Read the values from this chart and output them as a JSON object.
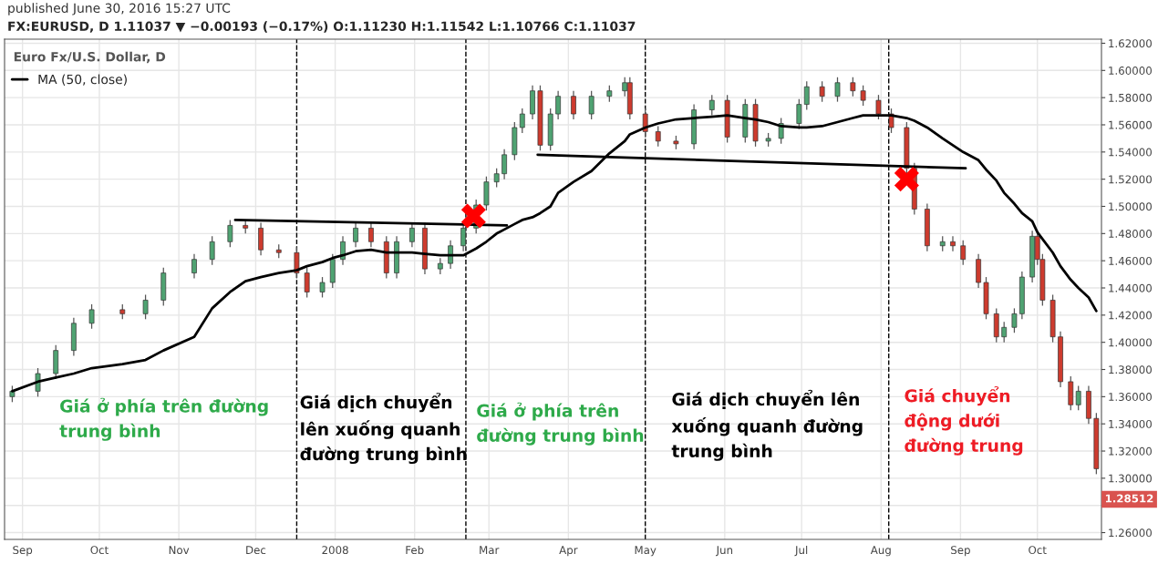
{
  "chart_data": {
    "type": "candlestick",
    "title": "FX:EURUSD, D 1.11037 ▼ −0.00193 (−0.17%) O:1.11230 H:1.11542 L:1.10766 C:1.11037",
    "subtitle": "Euro Fx/U.S. Dollar, D",
    "x": [
      "2007-08-28",
      "2007-09-07",
      "2007-09-14",
      "2007-09-21",
      "2007-09-28",
      "2007-10-10",
      "2007-10-19",
      "2007-10-26",
      "2007-11-07",
      "2007-11-14",
      "2007-11-21",
      "2007-11-27",
      "2007-12-03",
      "2007-12-10",
      "2007-12-17",
      "2007-12-21",
      "2007-12-27",
      "2007-12-31",
      "2008-01-04",
      "2008-01-09",
      "2008-01-15",
      "2008-01-21",
      "2008-01-25",
      "2008-01-31",
      "2008-02-05",
      "2008-02-11",
      "2008-02-15",
      "2008-02-20",
      "2008-02-25",
      "2008-02-29",
      "2008-03-04",
      "2008-03-07",
      "2008-03-11",
      "2008-03-14",
      "2008-03-18",
      "2008-03-21",
      "2008-03-25",
      "2008-03-28",
      "2008-04-03",
      "2008-04-10",
      "2008-04-17",
      "2008-04-23",
      "2008-04-25",
      "2008-05-01",
      "2008-05-06",
      "2008-05-13",
      "2008-05-20",
      "2008-05-27",
      "2008-06-02",
      "2008-06-09",
      "2008-06-13",
      "2008-06-18",
      "2008-06-23",
      "2008-06-30",
      "2008-07-03",
      "2008-07-09",
      "2008-07-15",
      "2008-07-21",
      "2008-07-25",
      "2008-07-31",
      "2008-08-05",
      "2008-08-11",
      "2008-08-14",
      "2008-08-19",
      "2008-08-25",
      "2008-08-29",
      "2008-09-02",
      "2008-09-08",
      "2008-09-11",
      "2008-09-15",
      "2008-09-18",
      "2008-09-22",
      "2008-09-25",
      "2008-09-29",
      "2008-10-01",
      "2008-10-03",
      "2008-10-07",
      "2008-10-10",
      "2008-10-14",
      "2008-10-17",
      "2008-10-21",
      "2008-10-24"
    ],
    "ohlc": [
      [
        1.36,
        1.368,
        1.356,
        1.364
      ],
      [
        1.364,
        1.381,
        1.36,
        1.377
      ],
      [
        1.377,
        1.398,
        1.373,
        1.394
      ],
      [
        1.394,
        1.418,
        1.39,
        1.414
      ],
      [
        1.414,
        1.428,
        1.41,
        1.424
      ],
      [
        1.424,
        1.428,
        1.417,
        1.421
      ],
      [
        1.421,
        1.435,
        1.417,
        1.431
      ],
      [
        1.431,
        1.455,
        1.427,
        1.451
      ],
      [
        1.451,
        1.465,
        1.447,
        1.461
      ],
      [
        1.461,
        1.478,
        1.457,
        1.474
      ],
      [
        1.474,
        1.49,
        1.47,
        1.486
      ],
      [
        1.486,
        1.49,
        1.48,
        1.484
      ],
      [
        1.484,
        1.488,
        1.464,
        1.468
      ],
      [
        1.468,
        1.472,
        1.462,
        1.466
      ],
      [
        1.466,
        1.47,
        1.447,
        1.451
      ],
      [
        1.451,
        1.455,
        1.433,
        1.437
      ],
      [
        1.437,
        1.448,
        1.433,
        1.444
      ],
      [
        1.444,
        1.465,
        1.44,
        1.461
      ],
      [
        1.461,
        1.478,
        1.457,
        1.474
      ],
      [
        1.474,
        1.488,
        1.47,
        1.484
      ],
      [
        1.484,
        1.488,
        1.47,
        1.474
      ],
      [
        1.474,
        1.478,
        1.447,
        1.451
      ],
      [
        1.451,
        1.478,
        1.447,
        1.474
      ],
      [
        1.474,
        1.488,
        1.47,
        1.484
      ],
      [
        1.484,
        1.488,
        1.45,
        1.454
      ],
      [
        1.454,
        1.462,
        1.45,
        1.458
      ],
      [
        1.458,
        1.475,
        1.454,
        1.471
      ],
      [
        1.471,
        1.488,
        1.467,
        1.484
      ],
      [
        1.484,
        1.505,
        1.48,
        1.501
      ],
      [
        1.501,
        1.522,
        1.497,
        1.518
      ],
      [
        1.518,
        1.528,
        1.514,
        1.524
      ],
      [
        1.524,
        1.542,
        1.52,
        1.538
      ],
      [
        1.538,
        1.562,
        1.534,
        1.558
      ],
      [
        1.558,
        1.572,
        1.554,
        1.568
      ],
      [
        1.568,
        1.589,
        1.564,
        1.585
      ],
      [
        1.585,
        1.589,
        1.541,
        1.545
      ],
      [
        1.545,
        1.572,
        1.541,
        1.568
      ],
      [
        1.568,
        1.585,
        1.564,
        1.581
      ],
      [
        1.581,
        1.585,
        1.564,
        1.568
      ],
      [
        1.568,
        1.585,
        1.564,
        1.581
      ],
      [
        1.581,
        1.589,
        1.577,
        1.585
      ],
      [
        1.585,
        1.595,
        1.581,
        1.591
      ],
      [
        1.591,
        1.595,
        1.564,
        1.568
      ],
      [
        1.568,
        1.572,
        1.551,
        1.555
      ],
      [
        1.555,
        1.559,
        1.544,
        1.548
      ],
      [
        1.548,
        1.552,
        1.542,
        1.546
      ],
      [
        1.546,
        1.575,
        1.542,
        1.571
      ],
      [
        1.571,
        1.582,
        1.567,
        1.578
      ],
      [
        1.578,
        1.582,
        1.547,
        1.551
      ],
      [
        1.551,
        1.579,
        1.547,
        1.575
      ],
      [
        1.575,
        1.579,
        1.544,
        1.548
      ],
      [
        1.548,
        1.554,
        1.544,
        1.55
      ],
      [
        1.55,
        1.565,
        1.546,
        1.561
      ],
      [
        1.561,
        1.579,
        1.557,
        1.575
      ],
      [
        1.575,
        1.592,
        1.571,
        1.588
      ],
      [
        1.588,
        1.592,
        1.577,
        1.581
      ],
      [
        1.581,
        1.595,
        1.577,
        1.591
      ],
      [
        1.591,
        1.595,
        1.581,
        1.585
      ],
      [
        1.585,
        1.589,
        1.574,
        1.578
      ],
      [
        1.578,
        1.582,
        1.564,
        1.568
      ],
      [
        1.568,
        1.572,
        1.554,
        1.558
      ],
      [
        1.558,
        1.562,
        1.524,
        1.528
      ],
      [
        1.528,
        1.532,
        1.494,
        1.498
      ],
      [
        1.498,
        1.502,
        1.467,
        1.471
      ],
      [
        1.471,
        1.478,
        1.467,
        1.474
      ],
      [
        1.474,
        1.478,
        1.467,
        1.471
      ],
      [
        1.471,
        1.475,
        1.457,
        1.461
      ],
      [
        1.461,
        1.465,
        1.44,
        1.444
      ],
      [
        1.444,
        1.448,
        1.417,
        1.421
      ],
      [
        1.421,
        1.425,
        1.4,
        1.404
      ],
      [
        1.404,
        1.415,
        1.4,
        1.411
      ],
      [
        1.411,
        1.425,
        1.407,
        1.421
      ],
      [
        1.421,
        1.452,
        1.417,
        1.448
      ],
      [
        1.448,
        1.482,
        1.444,
        1.478
      ],
      [
        1.478,
        1.482,
        1.457,
        1.461
      ],
      [
        1.461,
        1.465,
        1.427,
        1.431
      ],
      [
        1.431,
        1.435,
        1.4,
        1.404
      ],
      [
        1.404,
        1.408,
        1.367,
        1.371
      ],
      [
        1.371,
        1.375,
        1.35,
        1.354
      ],
      [
        1.354,
        1.368,
        1.35,
        1.364
      ],
      [
        1.364,
        1.368,
        1.34,
        1.344
      ],
      [
        1.344,
        1.348,
        1.303,
        1.307
      ]
    ],
    "colors": [
      "#4fa372",
      "#4fa372",
      "#4fa372",
      "#4fa372",
      "#4fa372",
      "#cd3b2e",
      "#4fa372",
      "#4fa372",
      "#4fa372",
      "#4fa372",
      "#4fa372",
      "#cd3b2e",
      "#cd3b2e",
      "#cd3b2e",
      "#cd3b2e",
      "#cd3b2e",
      "#4fa372",
      "#4fa372",
      "#4fa372",
      "#4fa372",
      "#cd3b2e",
      "#cd3b2e",
      "#4fa372",
      "#4fa372",
      "#cd3b2e",
      "#4fa372",
      "#4fa372",
      "#4fa372",
      "#4fa372",
      "#4fa372",
      "#4fa372",
      "#4fa372",
      "#4fa372",
      "#4fa372",
      "#4fa372",
      "#cd3b2e",
      "#4fa372",
      "#4fa372",
      "#cd3b2e",
      "#4fa372",
      "#4fa372",
      "#4fa372",
      "#cd3b2e",
      "#cd3b2e",
      "#cd3b2e",
      "#cd3b2e",
      "#4fa372",
      "#4fa372",
      "#cd3b2e",
      "#4fa372",
      "#cd3b2e",
      "#4fa372",
      "#4fa372",
      "#4fa372",
      "#4fa372",
      "#cd3b2e",
      "#4fa372",
      "#cd3b2e",
      "#cd3b2e",
      "#cd3b2e",
      "#cd3b2e",
      "#cd3b2e",
      "#cd3b2e",
      "#cd3b2e",
      "#4fa372",
      "#cd3b2e",
      "#cd3b2e",
      "#cd3b2e",
      "#cd3b2e",
      "#cd3b2e",
      "#4fa372",
      "#4fa372",
      "#4fa372",
      "#4fa372",
      "#cd3b2e",
      "#cd3b2e",
      "#cd3b2e",
      "#cd3b2e",
      "#cd3b2e",
      "#4fa372",
      "#cd3b2e",
      "#cd3b2e"
    ],
    "series": [
      {
        "type": "line",
        "name": "MA (50, close)",
        "color": "#000000",
        "values": [
          1.364,
          1.371,
          1.374,
          1.377,
          1.381,
          1.384,
          1.387,
          1.394,
          1.404,
          1.425,
          1.437,
          1.445,
          1.448,
          1.451,
          1.453,
          1.456,
          1.459,
          1.462,
          1.464,
          1.467,
          1.468,
          1.466,
          1.466,
          1.466,
          1.465,
          1.464,
          1.464,
          1.464,
          1.469,
          1.474,
          1.48,
          1.483,
          1.487,
          1.49,
          1.492,
          1.495,
          1.5,
          1.51,
          1.518,
          1.526,
          1.539,
          1.548,
          1.553,
          1.558,
          1.561,
          1.564,
          1.565,
          1.566,
          1.567,
          1.565,
          1.564,
          1.562,
          1.559,
          1.558,
          1.558,
          1.559,
          1.562,
          1.565,
          1.567,
          1.567,
          1.567,
          1.565,
          1.563,
          1.558,
          1.55,
          1.545,
          1.54,
          1.534,
          1.527,
          1.519,
          1.51,
          1.502,
          1.495,
          1.489,
          1.481,
          1.476,
          1.466,
          1.456,
          1.446,
          1.44,
          1.433,
          1.423
        ]
      },
      {
        "type": "line",
        "color": "#000000",
        "x": [
          "2007-11-23",
          "2008-03-08"
        ],
        "values": [
          1.49,
          1.486
        ]
      },
      {
        "type": "line",
        "color": "#000000",
        "x": [
          "2008-03-20",
          "2008-09-03"
        ],
        "values": [
          1.538,
          1.528
        ]
      },
      {
        "type": "scatter",
        "marker": "cross",
        "color": "#ff0000",
        "x": [
          "2008-02-24",
          "2008-08-11"
        ],
        "values": [
          1.493,
          1.52
        ]
      }
    ],
    "ref_lines": [
      {
        "axis": "x",
        "value": "2007-12-17",
        "color": "#000000",
        "line_style": "dashed"
      },
      {
        "axis": "x",
        "value": "2008-02-21",
        "color": "#000000",
        "line_style": "dashed"
      },
      {
        "axis": "x",
        "value": "2008-05-01",
        "color": "#000000",
        "line_style": "dashed"
      },
      {
        "axis": "x",
        "value": "2008-08-04",
        "color": "#000000",
        "line_style": "dashed"
      }
    ],
    "annotations": [
      "published June 30, 2016 15:27 UTC",
      "Giá ở phía trên đường\ntrung bình",
      "Giá dịch chuyển\nlên xuống quanh\nđường trung bình",
      "Giá ở phía trên\nđường trung bình",
      "Giá dịch chuyển lên\nxuống quanh đường\ntrung bình",
      "Giá chuyển\nđộng dưới\nđường trung",
      "1.28512"
    ],
    "xlim": [
      "2007-08-25",
      "2008-10-26"
    ],
    "xticks": [
      {
        "value": "2007-09-01",
        "label": "Sep"
      },
      {
        "value": "2007-10-01",
        "label": "Oct"
      },
      {
        "value": "2007-11-01",
        "label": "Nov"
      },
      {
        "value": "2007-12-01",
        "label": "Dec"
      },
      {
        "value": "2008-01-01",
        "label": "2008"
      },
      {
        "value": "2008-02-01",
        "label": "Feb"
      },
      {
        "value": "2008-03-01",
        "label": "Mar"
      },
      {
        "value": "2008-04-01",
        "label": "Apr"
      },
      {
        "value": "2008-05-01",
        "label": "May"
      },
      {
        "value": "2008-06-01",
        "label": "Jun"
      },
      {
        "value": "2008-07-01",
        "label": "Jul"
      },
      {
        "value": "2008-08-01",
        "label": "Aug"
      },
      {
        "value": "2008-09-01",
        "label": "Sep"
      },
      {
        "value": "2008-10-01",
        "label": "Oct"
      }
    ],
    "ylim": [
      1.255,
      1.623
    ],
    "yticks": [
      {
        "value": 1.26,
        "label": "1.26000"
      },
      {
        "value": 1.28,
        "label": null
      },
      {
        "value": 1.3,
        "label": "1.30000"
      },
      {
        "value": 1.32,
        "label": "1.32000"
      },
      {
        "value": 1.34,
        "label": "1.34000"
      },
      {
        "value": 1.36,
        "label": "1.36000"
      },
      {
        "value": 1.38,
        "label": "1.38000"
      },
      {
        "value": 1.4,
        "label": "1.40000"
      },
      {
        "value": 1.42,
        "label": "1.42000"
      },
      {
        "value": 1.44,
        "label": "1.44000"
      },
      {
        "value": 1.46,
        "label": "1.46000"
      },
      {
        "value": 1.48,
        "label": "1.48000"
      },
      {
        "value": 1.5,
        "label": "1.50000"
      },
      {
        "value": 1.52,
        "label": "1.52000"
      },
      {
        "value": 1.54,
        "label": "1.54000"
      },
      {
        "value": 1.56,
        "label": "1.56000"
      },
      {
        "value": 1.58,
        "label": "1.58000"
      },
      {
        "value": 1.6,
        "label": "1.60000"
      },
      {
        "value": 1.62,
        "label": "1.62000"
      }
    ],
    "grid": true,
    "legend": "top left"
  }
}
